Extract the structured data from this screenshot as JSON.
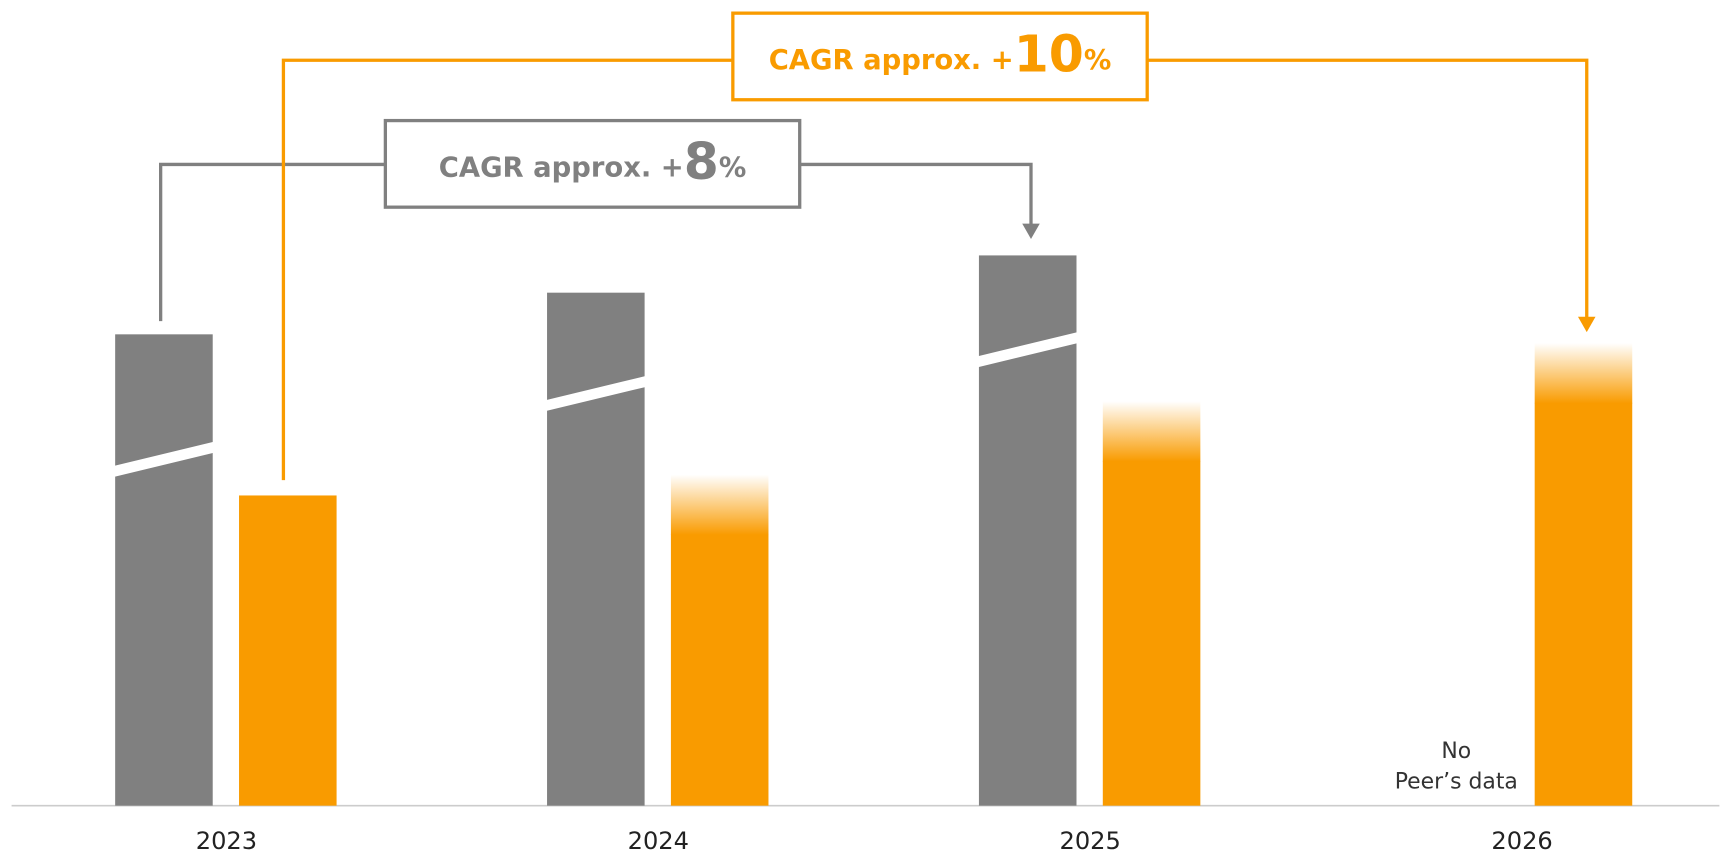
{
  "chart_data": {
    "type": "bar",
    "categories": [
      "2023",
      "2024",
      "2025",
      "2026"
    ],
    "series": [
      {
        "color": "#808080",
        "values": [
          430,
          468,
          502,
          null
        ]
      },
      {
        "color": "#f99b00",
        "values": [
          283,
          302,
          369,
          422
        ]
      }
    ],
    "ylim": [
      0,
      735
    ],
    "annotations": [
      {
        "prefix": "CAGR approx. +",
        "value": 8,
        "suffix": "%",
        "color": "#808080"
      },
      {
        "prefix": "CAGR approx. +",
        "value": 10,
        "suffix": "%",
        "color": "#f99b00"
      }
    ],
    "note": [
      "No",
      "Peer’s data"
    ]
  }
}
